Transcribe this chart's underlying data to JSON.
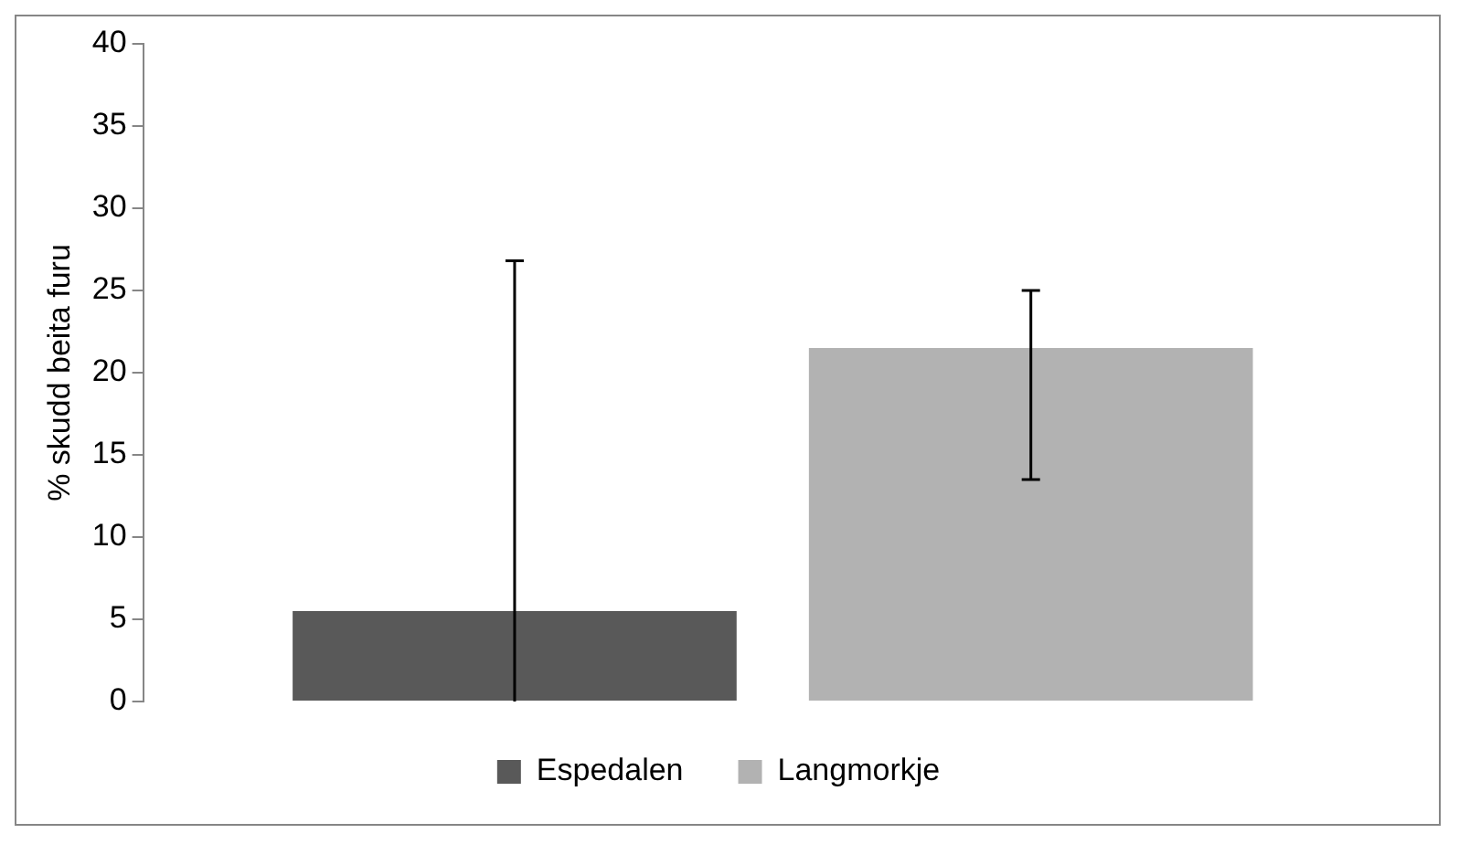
{
  "chart_data": {
    "type": "bar",
    "ylabel": "% skudd beita furu",
    "categories": [
      null
    ],
    "series": [
      {
        "name": "Espedalen",
        "color": "#595959",
        "values": [
          5.5
        ],
        "errors": [
          [
            0,
            26.8
          ]
        ]
      },
      {
        "name": "Langmorkje",
        "color": "#b2b2b2",
        "values": [
          21.5
        ],
        "errors": [
          [
            13.5,
            25
          ]
        ]
      }
    ],
    "ylim": [
      0,
      40
    ],
    "yticks": [
      0,
      5,
      10,
      15,
      20,
      25,
      30,
      35,
      40
    ],
    "grid": false,
    "legend": "bottom"
  }
}
